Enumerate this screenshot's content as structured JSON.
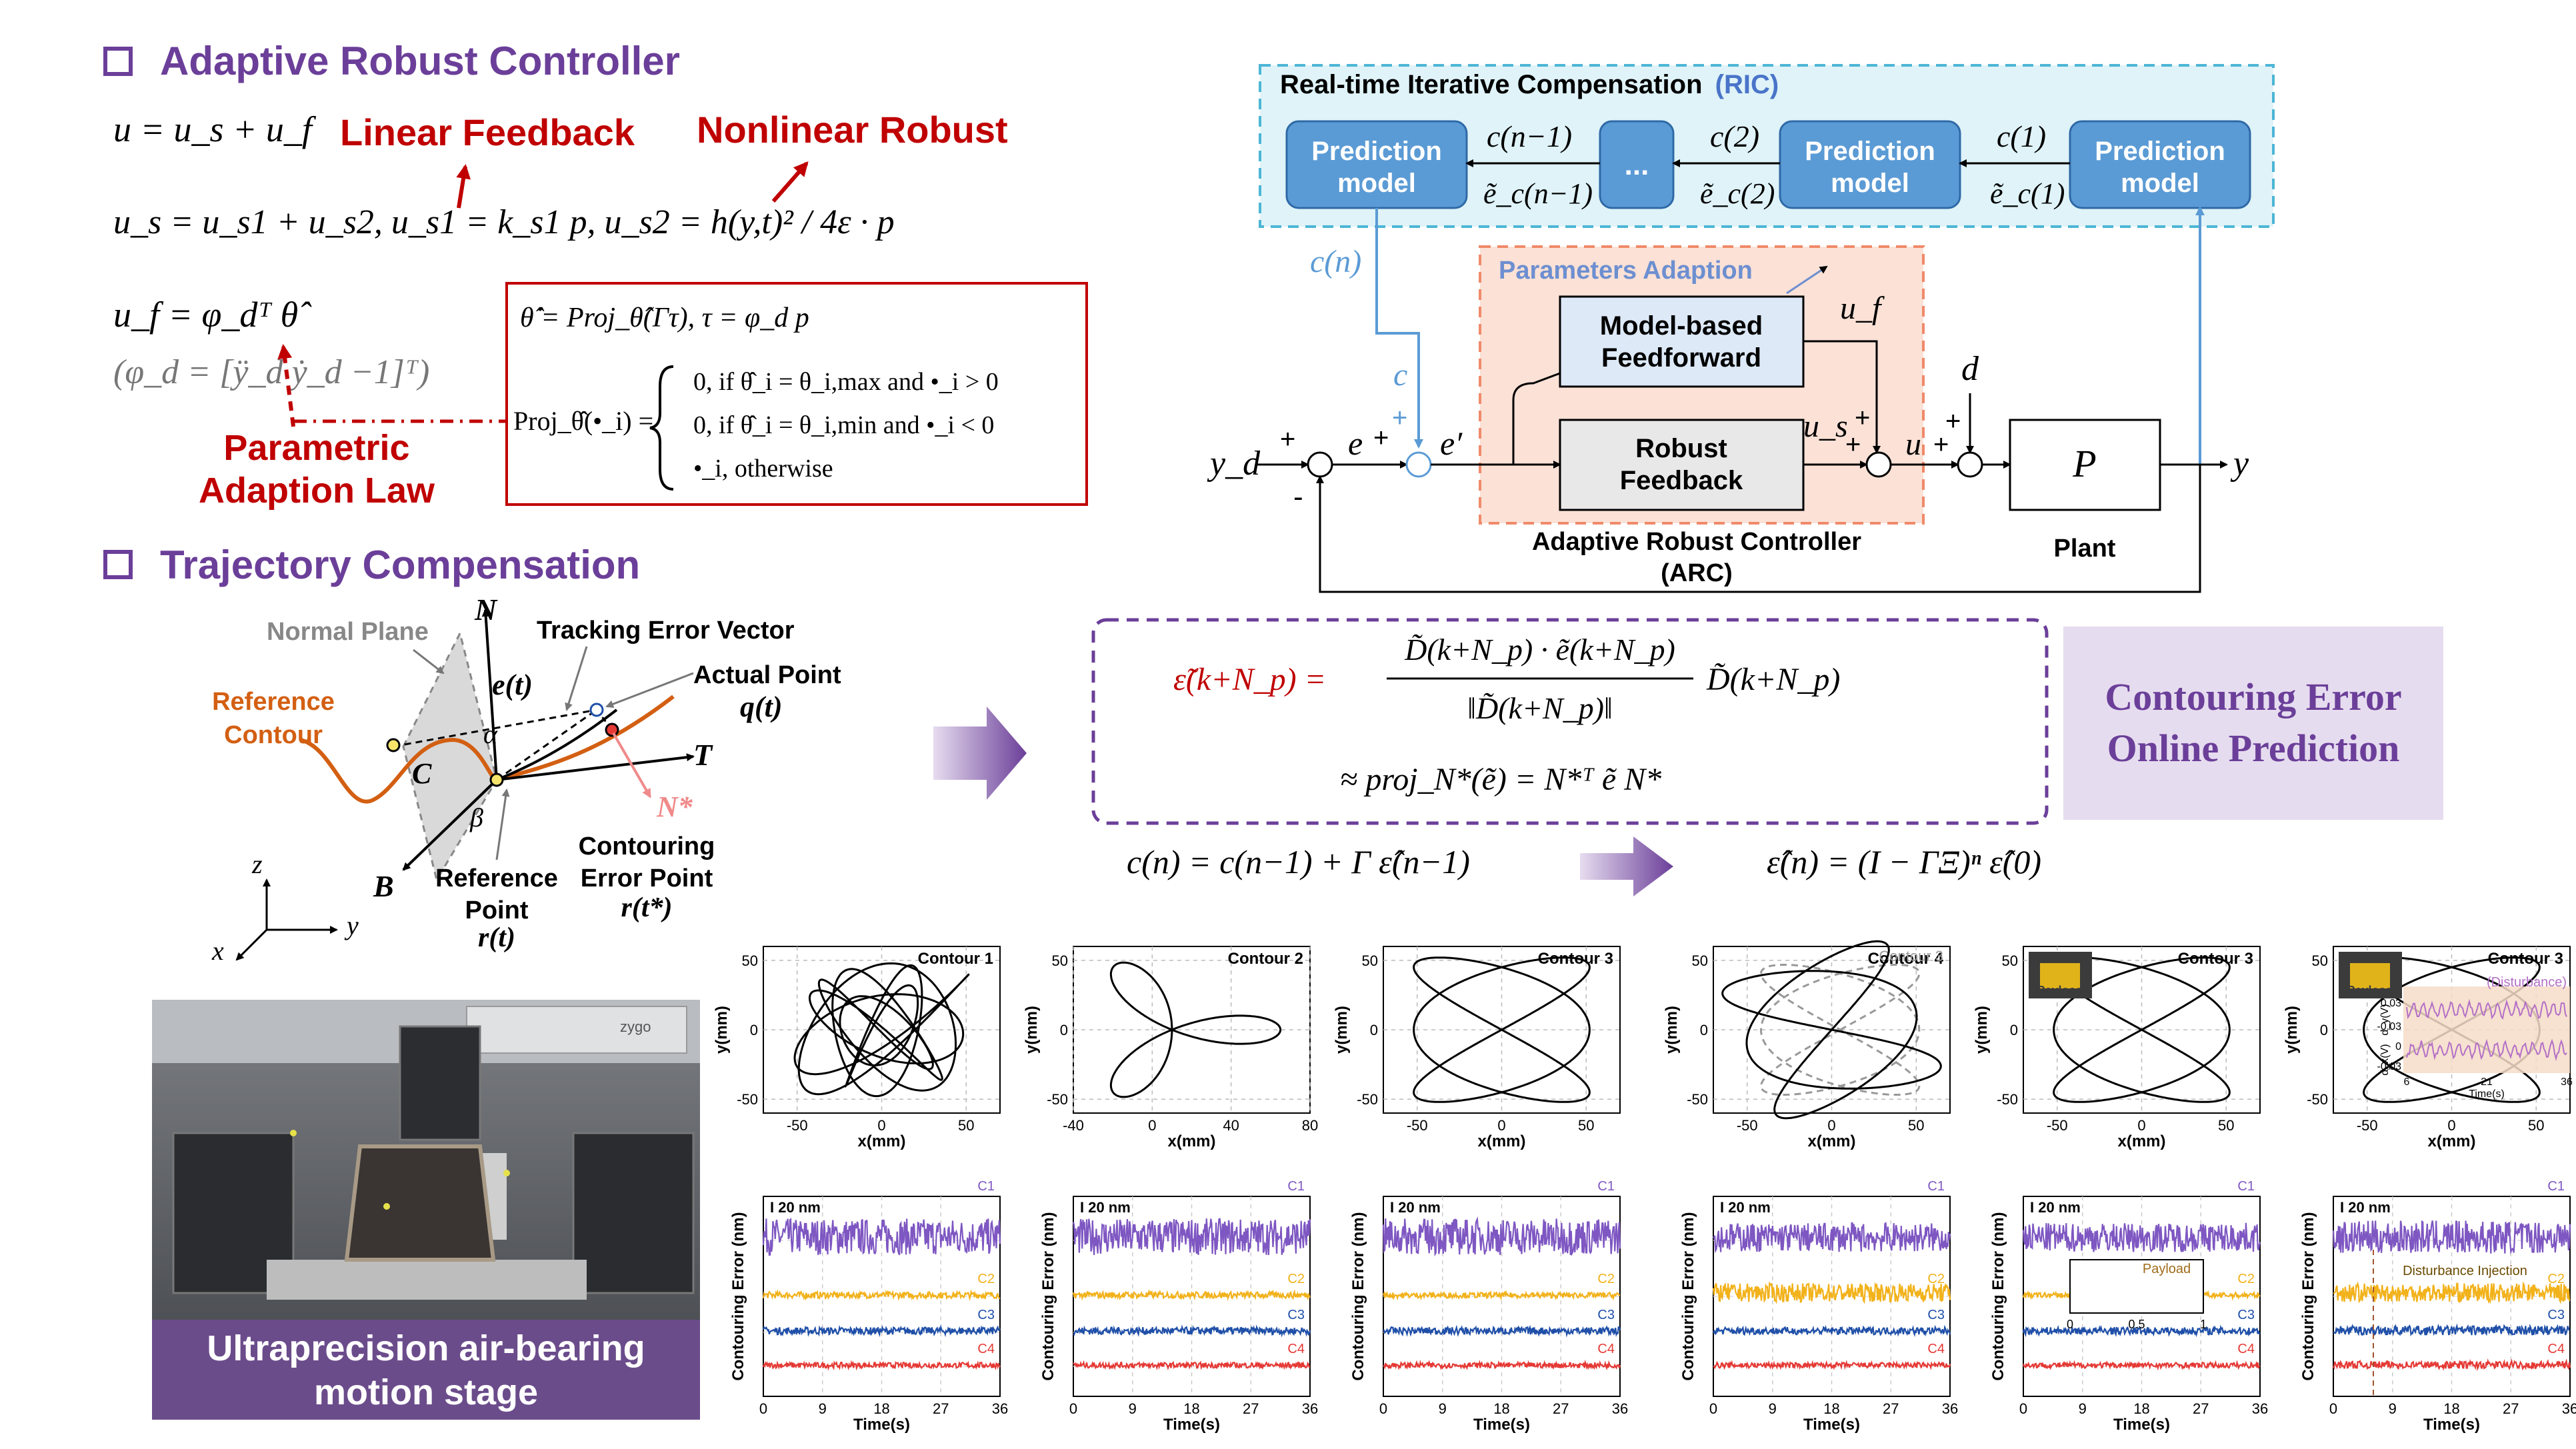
{
  "arc_section": {
    "heading": "Adaptive Robust Controller",
    "eq_u": "u = u_s + u_f",
    "eq_us": "u_s = u_s1 + u_s2, u_s1 = k_s1 p, u_s2 = h(y,t)² / 4ε · p",
    "eq_uf": "u_f = φ_dᵀ θ̂",
    "eq_phi": "(φ_d = [ÿ_d  ẏ_d  −1]ᵀ)",
    "linear_feedback": "Linear Feedback",
    "nonlinear_robust": "Nonlinear Robust",
    "parametric_law_1": "Parametric",
    "parametric_law_2": "Adaption Law",
    "law_theta": "θ̂̇ = Proj_θ̂(Γτ), τ = φ_d p",
    "proj_lhs": "Proj_θ̂(•_i) =",
    "proj_case1": "0,   if θ̂_i = θ_i,max and •_i > 0",
    "proj_case2": "0,   if θ̂_i = θ_i,min and •_i < 0",
    "proj_case3": "•_i,  otherwise"
  },
  "traj_section": {
    "heading": "Trajectory Compensation",
    "normal_plane": "Normal Plane",
    "tracking_error_vector": "Tracking Error Vector",
    "e_t": "e(t)",
    "actual_point": "Actual Point",
    "q_t": "q(t)",
    "reference_contour_1": "Reference",
    "reference_contour_2": "Contour",
    "N": "N",
    "T": "T",
    "B": "B",
    "C": "C",
    "alpha": "α",
    "beta": "β",
    "N_star": "N*",
    "reference_point_1": "Reference",
    "reference_point_2": "Point",
    "r_t": "r(t)",
    "contouring_error_point_1": "Contouring",
    "contouring_error_point_2": "Error Point",
    "r_tstar": "r(t*)",
    "axis_z": "z",
    "axis_y": "y",
    "axis_x": "x"
  },
  "photo": {
    "caption_1": "Ultraprecision air-bearing",
    "caption_2": "motion stage",
    "stage_brand": "zygo"
  },
  "block_diagram": {
    "ric_title": "Real-time Iterative Compensation",
    "ric_acronym": "(RIC)",
    "prediction_model": [
      "Prediction",
      "model"
    ],
    "ellipsis": "...",
    "c_n_minus_1": "c(n−1)",
    "c_2": "c(2)",
    "c_1": "c(1)",
    "e_n_minus_1": "ẽ_c(n−1)",
    "e_2": "ẽ_c(2)",
    "e_1": "ẽ_c(1)",
    "c_n": "c(n)",
    "c": "c",
    "params_adaption": "Parameters Adaption",
    "model_ff": [
      "Model-based",
      "Feedforward"
    ],
    "robust_fb": [
      "Robust",
      "Feedback"
    ],
    "u_f": "u_f",
    "u_s": "u_s",
    "u": "u",
    "d": "d",
    "P": "P",
    "y": "y",
    "y_d": "y_d",
    "e": "e",
    "e_prime": "e′",
    "plus": "+",
    "minus": "-",
    "arc_label_1": "Adaptive Robust Controller",
    "arc_label_2": "(ARC)",
    "plant": "Plant"
  },
  "prediction": {
    "eq1_lhs": "ε̃(k+N_p) =",
    "eq1_num": "D̃(k+N_p) · ẽ(k+N_p)",
    "eq1_den": "‖D̃(k+N_p)‖",
    "eq1_tail": "D̃(k+N_p)",
    "eq2": "≈ proj_N*(ẽ) = N*ᵀ ẽ N*",
    "title_1": "Contouring Error",
    "title_2": "Online Prediction",
    "update_eq": "c(n) = c(n−1) + Γ ε̂(n−1)",
    "convergence_eq": "ε̂(n) = (I − ΓΞ)ⁿ ε̂(0)"
  },
  "chart_data": [
    {
      "type": "line",
      "title": "Contour 1",
      "xlabel": "x(mm)",
      "ylabel": "y(mm)",
      "xlim": [
        -70,
        70
      ],
      "ylim": [
        -60,
        60
      ],
      "xticks": [
        -50,
        0,
        50
      ],
      "yticks": [
        -50,
        0,
        50
      ],
      "grid": true,
      "shape": "lissajous-dense"
    },
    {
      "type": "line",
      "title": "Contour 2",
      "xlabel": "x(mm)",
      "ylabel": "y(mm)",
      "xlim": [
        -40,
        80
      ],
      "ylim": [
        -60,
        60
      ],
      "xticks": [
        -40,
        0,
        40,
        80
      ],
      "yticks": [
        -50,
        0,
        50
      ],
      "grid": true,
      "shape": "three-leaf rose"
    },
    {
      "type": "line",
      "title": "Contour 3",
      "xlabel": "x(mm)",
      "ylabel": "y(mm)",
      "xlim": [
        -70,
        70
      ],
      "ylim": [
        -60,
        60
      ],
      "xticks": [
        -50,
        0,
        50
      ],
      "yticks": [
        -50,
        0,
        50
      ],
      "grid": true,
      "shape": "lissajous 3:2"
    },
    {
      "type": "line",
      "title": "Contour 4",
      "overlay": "Contour 3",
      "xlabel": "x(mm)",
      "ylabel": "y(mm)",
      "xlim": [
        -70,
        70
      ],
      "ylim": [
        -60,
        60
      ],
      "xticks": [
        -50,
        0,
        50
      ],
      "yticks": [
        -50,
        0,
        50
      ],
      "grid": true,
      "shape": "rotated lissajous"
    },
    {
      "type": "line",
      "title": "Contour 3",
      "annotation": "Payload",
      "xlabel": "x(mm)",
      "ylabel": "y(mm)",
      "xlim": [
        -70,
        70
      ],
      "ylim": [
        -60,
        60
      ],
      "xticks": [
        -50,
        0,
        50
      ],
      "yticks": [
        -50,
        0,
        50
      ],
      "grid": true,
      "shape": "lissajous 3:2"
    },
    {
      "type": "line",
      "title": "Contour 3",
      "annotation": "Payload",
      "disturbance": "(Disturbance)",
      "inset_ylabel_1": "d_y(V)",
      "inset_ylabel_2": "d_x(V)",
      "inset_yticks": [
        "0.03",
        "0",
        "-0.03"
      ],
      "inset_xticks": [
        "6",
        "21",
        "36"
      ],
      "inset_xlabel": "Time(s)",
      "xlabel": "x(mm)",
      "ylabel": "y(mm)",
      "xlim": [
        -70,
        70
      ],
      "ylim": [
        -60,
        60
      ],
      "xticks": [
        -50,
        0,
        50
      ],
      "yticks": [
        -50,
        0,
        50
      ],
      "grid": true,
      "shape": "lissajous 3:2"
    },
    {
      "type": "line",
      "series_labels": [
        "C1",
        "C2",
        "C3",
        "C4"
      ],
      "scale_bar": "20 nm",
      "xlabel": "Time(s)",
      "ylabel": "Contouring Error (nm)",
      "xticks": [
        0,
        9,
        18,
        27,
        36
      ],
      "noise": [
        1.0,
        0.35,
        0.4,
        0.3
      ]
    },
    {
      "type": "line",
      "series_labels": [
        "C1",
        "C2",
        "C3",
        "C4"
      ],
      "scale_bar": "20 nm",
      "xlabel": "Time(s)",
      "ylabel": "Contouring Error (nm)",
      "xticks": [
        0,
        9,
        18,
        27,
        36
      ],
      "noise": [
        1.0,
        0.35,
        0.4,
        0.3
      ]
    },
    {
      "type": "line",
      "series_labels": [
        "C1",
        "C2",
        "C3",
        "C4"
      ],
      "scale_bar": "20 nm",
      "xlabel": "Time(s)",
      "ylabel": "Contouring Error (nm)",
      "xticks": [
        0,
        9,
        18,
        27,
        36
      ],
      "noise": [
        1.0,
        0.3,
        0.4,
        0.3
      ]
    },
    {
      "type": "line",
      "series_labels": [
        "C1",
        "C2",
        "C3",
        "C4"
      ],
      "scale_bar": "20 nm",
      "xlabel": "Time(s)",
      "ylabel": "Contouring Error (nm)",
      "xticks": [
        0,
        9,
        18,
        27,
        36
      ],
      "noise": [
        0.8,
        1.0,
        0.4,
        0.3
      ]
    },
    {
      "type": "line",
      "series_labels": [
        "C1",
        "C2",
        "C3",
        "C4"
      ],
      "scale_bar": "20 nm",
      "annotation": "Payload",
      "inset_xticks": [
        "0",
        "0.5",
        "1"
      ],
      "xlabel": "Time(s)",
      "ylabel": "Contouring Error (nm)",
      "xticks": [
        0,
        9,
        18,
        27,
        36
      ],
      "noise": [
        0.8,
        0.3,
        0.4,
        0.3
      ]
    },
    {
      "type": "line",
      "series_labels": [
        "C1",
        "C2",
        "C3",
        "C4"
      ],
      "scale_bar": "20 nm",
      "annotation": "Disturbance Injection",
      "xlabel": "Time(s)",
      "ylabel": "Contouring Error (nm)",
      "xticks": [
        0,
        9,
        18,
        27,
        36
      ],
      "noise": [
        0.9,
        1.0,
        0.5,
        0.4
      ]
    }
  ],
  "colors": {
    "heading_purple": "#6b3f99",
    "red_label": "#c00000",
    "c1": "#7e57c2",
    "c2": "#f2b21b",
    "c3": "#1f4fa8",
    "c4": "#e53935",
    "block_blue": "#5b9bd5",
    "ric_bg": "#dff3f8",
    "arc_bg": "#fbe1d6",
    "curve_orange": "#d35f12"
  }
}
